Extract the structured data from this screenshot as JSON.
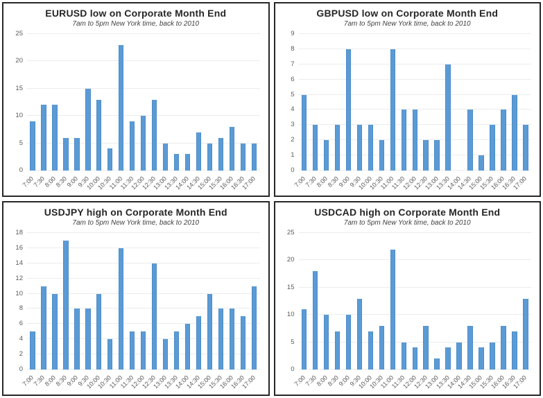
{
  "colors": {
    "bar_fill": "#5b9bd5",
    "bar_edge": "#4b8bc8",
    "gridline": "#ececec",
    "axis_text": "#595959",
    "title_text": "#262626",
    "subtitle_text": "#404040",
    "panel_border": "#262626",
    "background": "#ffffff"
  },
  "chart_data": [
    {
      "type": "bar",
      "title": "EURUSD low on Corporate Month End",
      "subtitle": "7am to 5pm New York time, back to 2010",
      "categories": [
        "7:00",
        "7:30",
        "8:00",
        "8:30",
        "9:00",
        "9:30",
        "10:00",
        "10:30",
        "11:00",
        "11:30",
        "12:00",
        "12:30",
        "13:00",
        "13:30",
        "14:00",
        "14:30",
        "15:00",
        "15:30",
        "16:00",
        "16:30",
        "17:00"
      ],
      "values": [
        9,
        12,
        12,
        6,
        6,
        15,
        13,
        4,
        23,
        9,
        10,
        13,
        5,
        3,
        3,
        7,
        5,
        6,
        8,
        5,
        5
      ],
      "xlabel": "",
      "ylabel": "",
      "ylim": [
        0,
        25
      ],
      "ytick_step": 5,
      "grid": true,
      "legend": "none"
    },
    {
      "type": "bar",
      "title": "GBPUSD low on Corporate Month End",
      "subtitle": "7am to 5pm New York time, back to 2010",
      "categories": [
        "7:00",
        "7:30",
        "8:00",
        "8:30",
        "9:00",
        "9:30",
        "10:00",
        "10:30",
        "11:00",
        "11:30",
        "12:00",
        "12:30",
        "13:00",
        "13:30",
        "14:00",
        "14:30",
        "15:00",
        "15:30",
        "16:00",
        "16:30",
        "17:00"
      ],
      "values": [
        5,
        3,
        2,
        3,
        8,
        3,
        3,
        2,
        8,
        4,
        4,
        2,
        2,
        7,
        0,
        4,
        1,
        3,
        4,
        5,
        3
      ],
      "xlabel": "",
      "ylabel": "",
      "ylim": [
        0,
        9
      ],
      "ytick_step": 1,
      "grid": true,
      "legend": "none"
    },
    {
      "type": "bar",
      "title": "USDJPY high on Corporate Month End",
      "subtitle": "7am to 5pm New York time, back to 2010",
      "categories": [
        "7:00",
        "7:30",
        "8:00",
        "8:30",
        "9:00",
        "9:30",
        "10:00",
        "10:30",
        "11:00",
        "11:30",
        "12:00",
        "12:30",
        "13:00",
        "13:30",
        "14:00",
        "14:30",
        "15:00",
        "15:30",
        "16:00",
        "16:30",
        "17:00"
      ],
      "values": [
        5,
        11,
        10,
        17,
        8,
        8,
        10,
        4,
        16,
        5,
        5,
        14,
        4,
        5,
        6,
        7,
        10,
        8,
        8,
        7,
        11
      ],
      "xlabel": "",
      "ylabel": "",
      "ylim": [
        0,
        18
      ],
      "ytick_step": 2,
      "grid": true,
      "legend": "none"
    },
    {
      "type": "bar",
      "title": "USDCAD high on Corporate Month End",
      "subtitle": "7am to 5pm New York time, back to 2010",
      "categories": [
        "7:00",
        "7:30",
        "8:00",
        "8:30",
        "9:00",
        "9:30",
        "10:00",
        "10:30",
        "11:00",
        "11:30",
        "12:00",
        "12:30",
        "13:00",
        "13:30",
        "14:00",
        "14:30",
        "15:00",
        "15:30",
        "16:00",
        "16:30",
        "17:00"
      ],
      "values": [
        11,
        18,
        10,
        7,
        10,
        13,
        7,
        8,
        22,
        5,
        4,
        8,
        2,
        4,
        5,
        8,
        4,
        5,
        8,
        7,
        13
      ],
      "xlabel": "",
      "ylabel": "",
      "ylim": [
        0,
        25
      ],
      "ytick_step": 5,
      "grid": true,
      "legend": "none"
    }
  ]
}
